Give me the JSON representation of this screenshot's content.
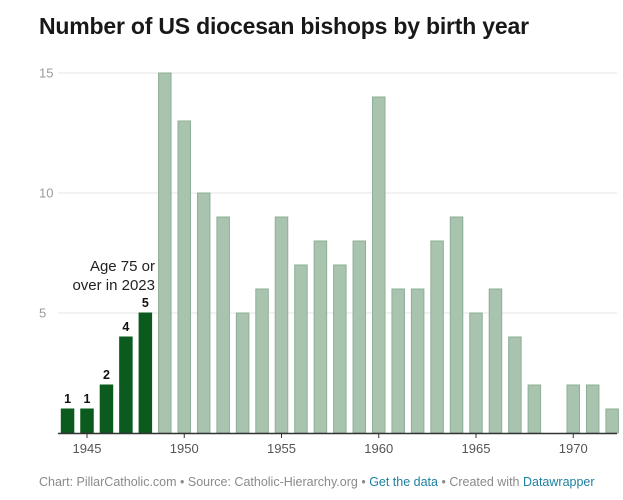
{
  "title": "Number of US diocesan bishops by birth year",
  "annotation": [
    "Age 75 or",
    "over in 2023"
  ],
  "footer": {
    "chart_credit": "Chart: PillarCatholic.com",
    "sep1": " • ",
    "source": "Source: Catholic-Hierarchy.org",
    "sep2": " • ",
    "get_data": "Get the data",
    "sep3": " • ",
    "created_with": "Created with ",
    "datawrapper": "Datawrapper"
  },
  "colors": {
    "highlight": "#0b5a1e",
    "base": "#a8c4ae",
    "base_stroke": "#8fae96",
    "grid": "#e4e4e4",
    "axis": "#333333",
    "tick_text": "#9a9a9a"
  },
  "chart_data": {
    "type": "bar",
    "title": "Number of US diocesan bishops by birth year",
    "xlabel": "",
    "ylabel": "",
    "ylim": [
      0,
      15
    ],
    "yticks": [
      5,
      10,
      15
    ],
    "xticks": [
      1945,
      1950,
      1955,
      1960,
      1965,
      1970
    ],
    "grid": true,
    "categories": [
      1944,
      1945,
      1946,
      1947,
      1948,
      1949,
      1950,
      1951,
      1952,
      1953,
      1954,
      1955,
      1956,
      1957,
      1958,
      1959,
      1960,
      1961,
      1962,
      1963,
      1964,
      1965,
      1966,
      1967,
      1968,
      1969,
      1970,
      1971,
      1972
    ],
    "values": [
      1,
      1,
      2,
      4,
      5,
      15,
      13,
      10,
      9,
      5,
      6,
      9,
      7,
      8,
      7,
      8,
      14,
      6,
      6,
      8,
      9,
      5,
      6,
      4,
      2,
      0,
      2,
      2,
      1
    ],
    "highlighted_categories": [
      1944,
      1945,
      1946,
      1947,
      1948
    ],
    "data_labels": {
      "1944": "1",
      "1945": "1",
      "1946": "2",
      "1947": "4",
      "1948": "5"
    }
  }
}
